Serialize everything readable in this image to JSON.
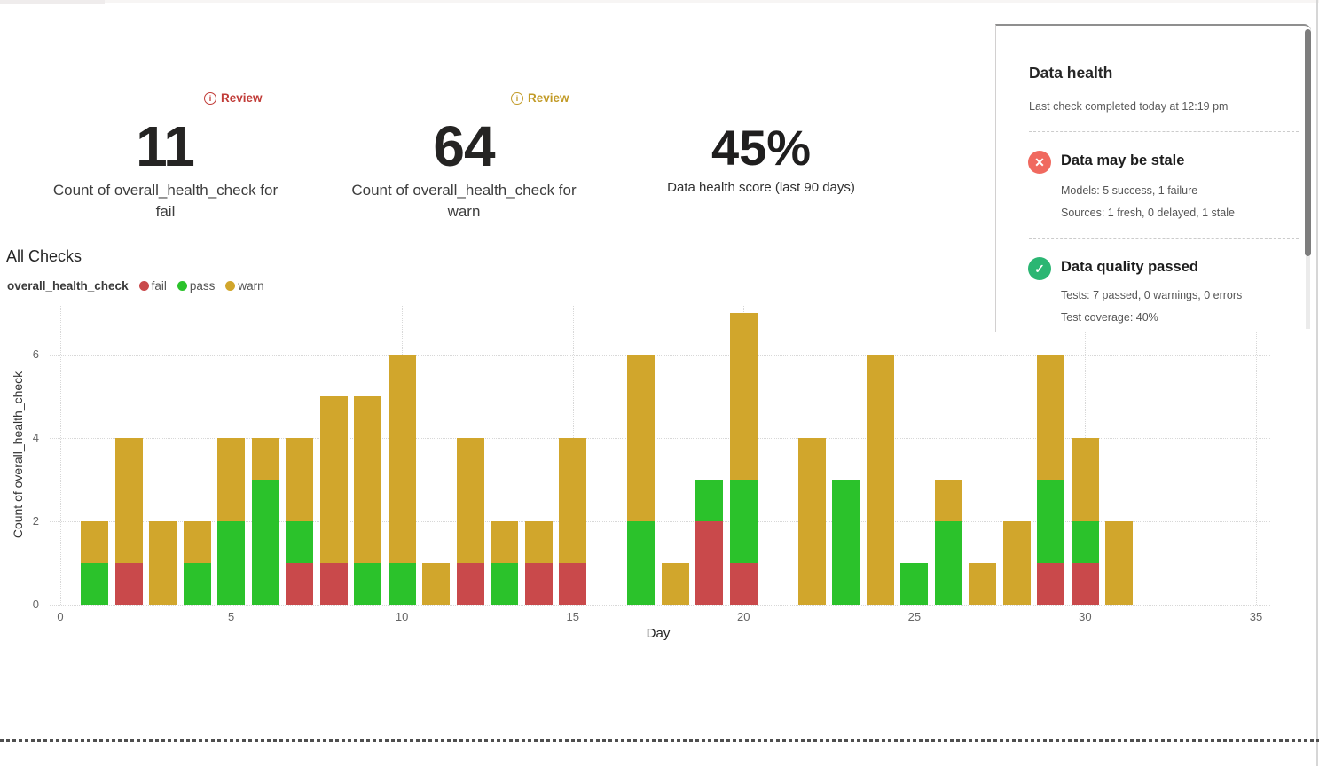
{
  "kpi_cards": [
    {
      "badge": "Review",
      "badge_color": "#c13c38",
      "value": "11",
      "label": "Count of overall_health_check for fail"
    },
    {
      "badge": "Review",
      "badge_color": "#c29b28",
      "value": "64",
      "label": "Count of overall_health_check for warn"
    },
    {
      "value": "45%",
      "label": "Data health score (last 90 days)"
    }
  ],
  "chart_data": {
    "type": "bar",
    "stacked": true,
    "title": "All Checks",
    "legend_label": "overall_health_check",
    "legend_position": "top-left",
    "xlabel": "Day",
    "ylabel": "Count of overall_health_check",
    "x_ticks": [
      0,
      5,
      10,
      15,
      20,
      25,
      30,
      35
    ],
    "y_ticks": [
      0,
      2,
      4,
      6
    ],
    "xlim": [
      0,
      35
    ],
    "ylim": [
      0,
      7
    ],
    "grid": true,
    "days": [
      1,
      2,
      3,
      4,
      5,
      6,
      7,
      8,
      9,
      10,
      11,
      12,
      13,
      14,
      15,
      17,
      18,
      19,
      20,
      22,
      23,
      24,
      25,
      26,
      27,
      28,
      29,
      30,
      31
    ],
    "series": [
      {
        "name": "fail",
        "color": "#c9494b",
        "values": [
          0,
          1,
          0,
          0,
          0,
          0,
          1,
          1,
          0,
          0,
          0,
          1,
          0,
          1,
          1,
          0,
          0,
          2,
          1,
          0,
          0,
          0,
          0,
          0,
          0,
          0,
          1,
          1,
          0
        ]
      },
      {
        "name": "pass",
        "color": "#2bc22b",
        "values": [
          1,
          0,
          0,
          1,
          2,
          3,
          1,
          0,
          1,
          1,
          0,
          0,
          1,
          0,
          0,
          2,
          0,
          1,
          2,
          0,
          3,
          0,
          1,
          2,
          0,
          0,
          2,
          1,
          0
        ]
      },
      {
        "name": "warn",
        "color": "#d1a62c",
        "values": [
          1,
          3,
          2,
          1,
          2,
          1,
          2,
          4,
          4,
          5,
          1,
          3,
          1,
          1,
          3,
          4,
          1,
          0,
          4,
          4,
          0,
          6,
          0,
          1,
          1,
          2,
          3,
          2,
          2
        ]
      }
    ]
  },
  "health_panel": {
    "title": "Data health",
    "subtitle": "Last check completed today at 12:19 pm",
    "items": [
      {
        "icon": "x-circle",
        "icon_color": "#f0695f",
        "title": "Data may be stale",
        "lines": [
          "Models: 5 success, 1 failure",
          "Sources: 1 fresh, 0 delayed, 1 stale"
        ]
      },
      {
        "icon": "check-circle",
        "icon_color": "#2bb673",
        "title": "Data quality passed",
        "lines": [
          "Tests: 7 passed, 0 warnings, 0 errors",
          "Test coverage: 40%"
        ]
      }
    ]
  }
}
